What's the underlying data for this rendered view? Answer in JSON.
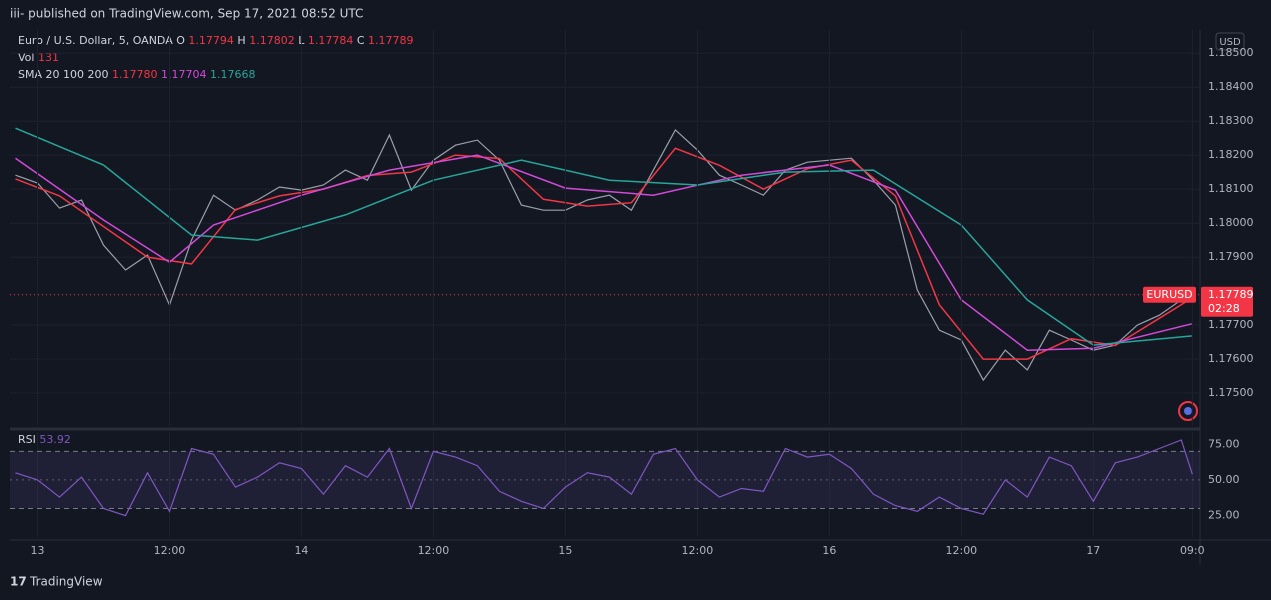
{
  "header": {
    "title": "iii- published on TradingView.com, Sep 17, 2021 08:52 UTC"
  },
  "footer": {
    "brand": "TradingView"
  },
  "legend": {
    "symbol": "Euro / U.S. Dollar, 5, OANDA",
    "ohlc": [
      {
        "label": "O",
        "value": "1.17794"
      },
      {
        "label": "H",
        "value": "1.17802"
      },
      {
        "label": "L",
        "value": "1.17784"
      },
      {
        "label": "C",
        "value": "1.17789"
      }
    ],
    "volume_label": "Vol",
    "volume": "131",
    "sma_label": "SMA 20 100 200",
    "sma_values": [
      "1.17780",
      "1.17704",
      "1.17668"
    ]
  },
  "currency": "USD",
  "chart_data": [
    {
      "type": "line",
      "xlim": [
        -2.5,
        105.7
      ],
      "xticks": [
        {
          "value": 0,
          "label": "13"
        },
        {
          "value": 12,
          "label": "12:00"
        },
        {
          "value": 24,
          "label": "14"
        },
        {
          "value": 36,
          "label": "12:00"
        },
        {
          "value": 48,
          "label": "15"
        },
        {
          "value": 60,
          "label": "12:00"
        },
        {
          "value": 72,
          "label": "16"
        },
        {
          "value": 84,
          "label": "12:00"
        },
        {
          "value": 96,
          "label": "17"
        },
        {
          "value": 105,
          "label": "09:0"
        }
      ],
      "ylim": [
        1.17406,
        1.18568
      ],
      "yticks": [
        {
          "value": 1.185,
          "label": "1.18500"
        },
        {
          "value": 1.184,
          "label": "1.18400"
        },
        {
          "value": 1.183,
          "label": "1.18300"
        },
        {
          "value": 1.182,
          "label": "1.18200"
        },
        {
          "value": 1.181,
          "label": "1.18100"
        },
        {
          "value": 1.18,
          "label": "1.18000"
        },
        {
          "value": 1.179,
          "label": "1.17900"
        },
        {
          "value": 1.177,
          "label": "1.17700"
        },
        {
          "value": 1.176,
          "label": "1.17600"
        },
        {
          "value": 1.175,
          "label": "1.17500"
        }
      ],
      "grid": true,
      "last_price": {
        "symbol": "EURUSD",
        "price": 1.17789,
        "countdown": "02:28",
        "color": "#f23645"
      },
      "series": [
        {
          "name": "EURUSD",
          "color": "#9aa0ab",
          "x": [
            -2,
            0,
            2,
            4,
            6,
            8,
            10,
            12,
            14,
            16,
            18,
            20,
            22,
            24,
            26,
            28,
            30,
            32,
            34,
            36,
            38,
            40,
            42,
            44,
            46,
            48,
            50,
            52,
            54,
            56,
            58,
            60,
            62,
            64,
            66,
            68,
            70,
            72,
            74,
            76,
            78,
            80,
            82,
            84,
            86,
            88,
            90,
            92,
            94,
            96,
            98,
            100,
            102,
            104,
            105
          ],
          "values": [
            1.18141,
            1.18118,
            1.18044,
            1.18068,
            1.17935,
            1.17862,
            1.17906,
            1.17759,
            1.1795,
            1.18082,
            1.18038,
            1.18068,
            1.18106,
            1.18097,
            1.18112,
            1.18156,
            1.18126,
            1.18259,
            1.18097,
            1.18185,
            1.18229,
            1.18244,
            1.18185,
            1.18053,
            1.18038,
            1.18038,
            1.18068,
            1.18082,
            1.18038,
            1.18156,
            1.18274,
            1.18215,
            1.18141,
            1.18112,
            1.18082,
            1.18156,
            1.18179,
            1.18185,
            1.18191,
            1.18126,
            1.18053,
            1.17803,
            1.17685,
            1.17656,
            1.17538,
            1.17626,
            1.17568,
            1.17685,
            1.17656,
            1.17626,
            1.17641,
            1.177,
            1.17729,
            1.17774,
            1.17789
          ]
        },
        {
          "name": "SMA 20",
          "color": "#f23645",
          "x": [
            -2,
            2,
            6,
            10,
            14,
            18,
            22,
            26,
            30,
            34,
            38,
            42,
            46,
            50,
            54,
            58,
            62,
            66,
            70,
            74,
            78,
            82,
            86,
            90,
            94,
            98,
            102,
            105
          ],
          "values": [
            1.1813,
            1.1808,
            1.1799,
            1.179,
            1.1788,
            1.1804,
            1.1808,
            1.181,
            1.1814,
            1.1815,
            1.182,
            1.1819,
            1.1807,
            1.1805,
            1.1806,
            1.1822,
            1.1817,
            1.181,
            1.1816,
            1.18185,
            1.1808,
            1.1776,
            1.176,
            1.176,
            1.1766,
            1.1764,
            1.1772,
            1.1778
          ]
        },
        {
          "name": "SMA 100",
          "color": "#d24ad8",
          "x": [
            -2,
            6,
            12,
            16,
            24,
            32,
            40,
            48,
            56,
            64,
            72,
            78,
            84,
            90,
            96,
            105
          ],
          "values": [
            1.18191,
            1.18009,
            1.17885,
            1.17994,
            1.18082,
            1.18156,
            1.182,
            1.18103,
            1.18082,
            1.18141,
            1.18171,
            1.18097,
            1.17774,
            1.17626,
            1.17632,
            1.17704
          ]
        },
        {
          "name": "SMA 200",
          "color": "#26a69a",
          "x": [
            -2,
            6,
            14,
            20,
            28,
            36,
            44,
            52,
            60,
            68,
            76,
            84,
            90,
            96,
            105
          ],
          "values": [
            1.18279,
            1.18171,
            1.17965,
            1.1795,
            1.18024,
            1.18126,
            1.18185,
            1.18126,
            1.18112,
            1.1815,
            1.18156,
            1.17994,
            1.17774,
            1.17641,
            1.17668
          ]
        }
      ]
    },
    {
      "type": "line",
      "title": "RSI",
      "value_label": "53.92",
      "xlim": [
        -2.5,
        105.7
      ],
      "ylim": [
        10,
        83.6
      ],
      "yticks": [
        {
          "value": 75,
          "label": "75.00"
        },
        {
          "value": 50,
          "label": "50.00"
        },
        {
          "value": 25,
          "label": "25.00"
        }
      ],
      "bands": [
        30,
        70
      ],
      "midline": 50,
      "series": [
        {
          "name": "RSI",
          "color": "#7e57c2",
          "x": [
            -2,
            0,
            2,
            4,
            6,
            8,
            10,
            12,
            14,
            16,
            18,
            20,
            22,
            24,
            26,
            28,
            30,
            32,
            34,
            36,
            38,
            40,
            42,
            44,
            46,
            48,
            50,
            52,
            54,
            56,
            58,
            60,
            62,
            64,
            66,
            68,
            70,
            72,
            74,
            76,
            78,
            80,
            82,
            84,
            86,
            88,
            90,
            92,
            94,
            96,
            98,
            100,
            102,
            104,
            105
          ],
          "values": [
            55,
            50,
            38,
            52,
            30,
            25,
            55,
            28,
            72,
            68,
            45,
            52,
            62,
            58,
            40,
            60,
            52,
            72,
            30,
            70,
            66,
            60,
            42,
            35,
            30,
            45,
            55,
            52,
            40,
            68,
            72,
            50,
            38,
            44,
            42,
            72,
            66,
            68,
            58,
            40,
            32,
            28,
            38,
            30,
            26,
            50,
            38,
            66,
            60,
            35,
            62,
            66,
            72,
            78,
            54
          ]
        }
      ]
    }
  ]
}
